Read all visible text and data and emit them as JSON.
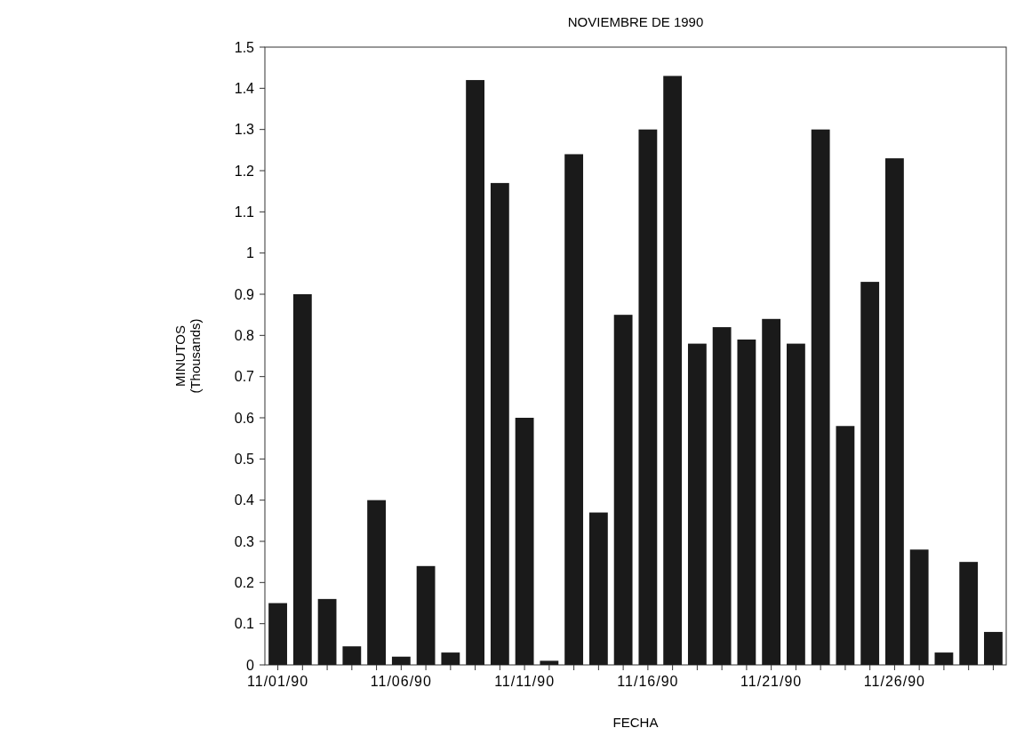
{
  "chart_data": {
    "type": "bar",
    "title": "NOVIEMBRE DE 1990",
    "xlabel": "FECHA",
    "ylabel": "MINUTOS\n(Thousands)",
    "categories": [
      "11/01/90",
      null,
      null,
      null,
      null,
      "11/06/90",
      null,
      null,
      null,
      null,
      "11/11/90",
      null,
      null,
      null,
      null,
      "11/16/90",
      null,
      null,
      null,
      null,
      "11/21/90",
      null,
      null,
      null,
      null,
      "11/26/90",
      null,
      null,
      null,
      null
    ],
    "values": [
      0.15,
      0.9,
      0.16,
      0.045,
      0.4,
      0.02,
      0.24,
      0.03,
      1.42,
      1.17,
      0.6,
      0.01,
      1.24,
      0.37,
      0.85,
      1.3,
      1.43,
      0.78,
      0.82,
      0.79,
      0.84,
      0.78,
      1.3,
      0.58,
      0.93,
      1.23,
      0.28,
      0.03,
      0.25,
      0.08
    ],
    "color": "#1a1a1a",
    "ylim": [
      0,
      1.5
    ],
    "yticks": [
      0,
      0.1,
      0.2,
      0.3,
      0.4,
      0.5,
      0.6,
      0.7,
      0.8,
      0.9,
      1,
      1.1,
      1.2,
      1.3,
      1.4,
      1.5
    ],
    "grid": false
  }
}
